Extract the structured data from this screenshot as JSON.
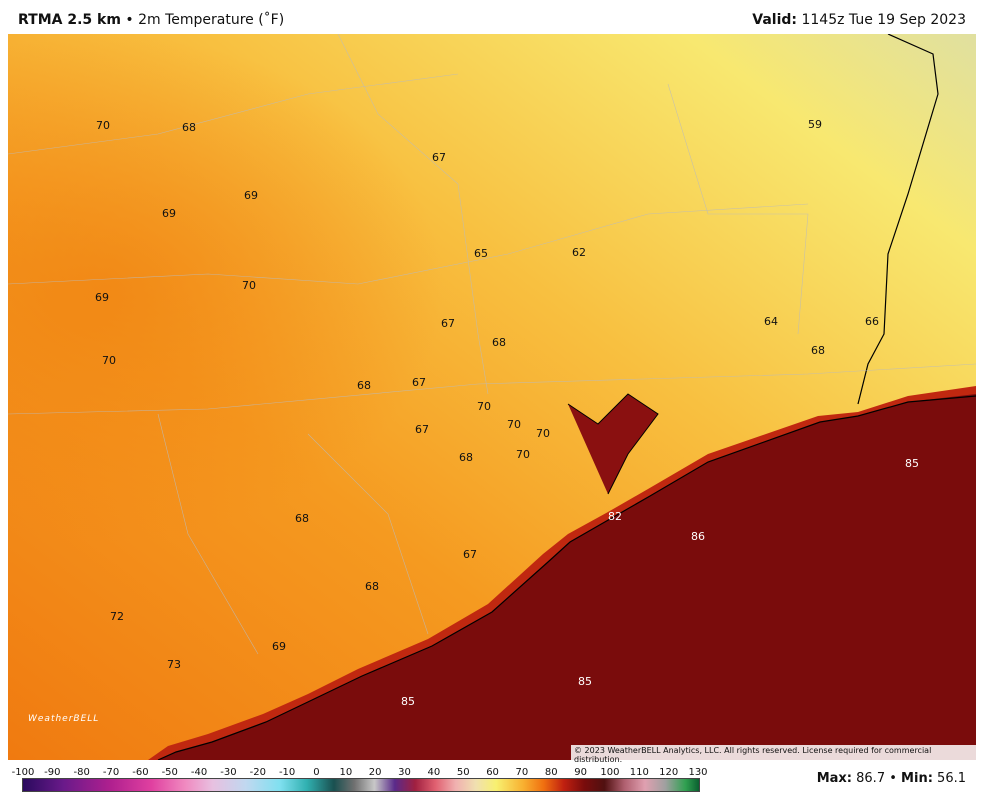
{
  "header": {
    "title": "RTMA 2.5 km",
    "separator": "•",
    "subtitle": "2m Temperature (˚F)",
    "valid_label": "Valid:",
    "valid_time": "1145z Tue 19 Sep 2023"
  },
  "map": {
    "station_values": [
      70,
      68,
      67,
      69,
      69,
      65,
      62,
      59,
      69,
      70,
      67,
      68,
      64,
      66,
      68,
      70,
      68,
      67,
      70,
      70,
      70,
      67,
      68,
      70,
      85,
      82,
      86,
      68,
      67,
      68,
      72,
      69,
      73,
      85,
      85
    ],
    "copyright": "© 2023 WeatherBELL Analytics, LLC. All rights reserved. License required for commercial distribution.",
    "logo": "WeatherBELL"
  },
  "colorbar": {
    "ticks": [
      -100,
      -90,
      -80,
      -70,
      -60,
      -50,
      -40,
      -30,
      -20,
      -10,
      0,
      10,
      20,
      30,
      40,
      50,
      60,
      70,
      80,
      90,
      100,
      110,
      120,
      130
    ]
  },
  "footer": {
    "max_label": "Max:",
    "max": 86.7,
    "separator": "•",
    "min_label": "Min:",
    "min": 56.1
  }
}
